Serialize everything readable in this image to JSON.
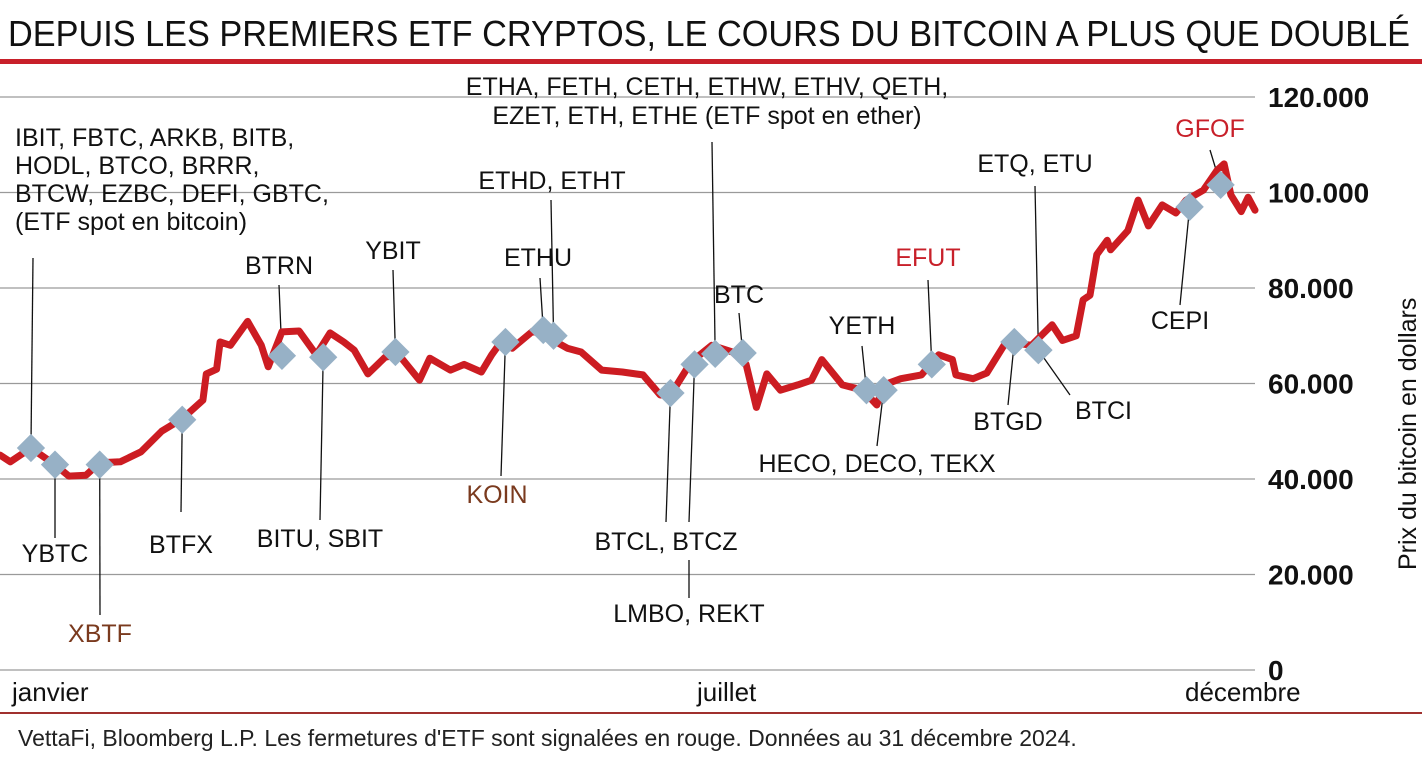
{
  "title": "DEPUIS LES PREMIERS ETF CRYPTOS, LE COURS DU BITCOIN A PLUS QUE DOUBLÉ",
  "footer": "VettaFi, Bloomberg L.P. Les fermetures d'ETF sont signalées en rouge. Données au 31 décembre 2024.",
  "colors": {
    "line": "#cc1c22",
    "marker": "#97b1c6",
    "closure_red": "#c8202a",
    "closure_brown": "#7a3a1e",
    "rule": "#c8202a",
    "grid": "#9a9a9a"
  },
  "chart_data": {
    "type": "line",
    "title": "DEPUIS LES PREMIERS ETF CRYPTOS, LE COURS DU BITCOIN A PLUS QUE DOUBLÉ",
    "ylabel": "Prix du bitcoin en dollars",
    "ylim": [
      0,
      120000
    ],
    "yticks": [
      0,
      20000,
      40000,
      60000,
      80000,
      100000,
      120000
    ],
    "ytick_labels": [
      "0",
      "20.000",
      "40.000",
      "60.000",
      "80.000",
      "100.000",
      "120.000"
    ],
    "xlim": [
      "2024-01-01",
      "2024-12-31"
    ],
    "xtick_labels": [
      "janvier",
      "juillet",
      "décembre"
    ],
    "grid": true,
    "series": [
      {
        "x": [
          "2024-01-01",
          "2024-01-04",
          "2024-01-10",
          "2024-01-17",
          "2024-01-21",
          "2024-01-26",
          "2024-01-30",
          "2024-02-05",
          "2024-02-11",
          "2024-02-17",
          "2024-02-23",
          "2024-02-29",
          "2024-03-01",
          "2024-03-04",
          "2024-03-05",
          "2024-03-08",
          "2024-03-13",
          "2024-03-17",
          "2024-03-19",
          "2024-03-23",
          "2024-03-28",
          "2024-04-02",
          "2024-04-06",
          "2024-04-10",
          "2024-04-13",
          "2024-04-17",
          "2024-04-22",
          "2024-04-26",
          "2024-05-02",
          "2024-05-05",
          "2024-05-11",
          "2024-05-15",
          "2024-05-20",
          "2024-05-23",
          "2024-05-26",
          "2024-05-29",
          "2024-06-04",
          "2024-06-10",
          "2024-06-14",
          "2024-06-18",
          "2024-06-24",
          "2024-06-30",
          "2024-07-06",
          "2024-07-11",
          "2024-07-14",
          "2024-07-20",
          "2024-07-26",
          "2024-08-01",
          "2024-08-05",
          "2024-08-08",
          "2024-08-11",
          "2024-08-15",
          "2024-08-20",
          "2024-08-24",
          "2024-08-27",
          "2024-09-02",
          "2024-09-08",
          "2024-09-12",
          "2024-09-14",
          "2024-09-19",
          "2024-09-25",
          "2024-09-30",
          "2024-10-04",
          "2024-10-05",
          "2024-10-10",
          "2024-10-14",
          "2024-10-19",
          "2024-10-22",
          "2024-10-27",
          "2024-11-02",
          "2024-11-05",
          "2024-11-09",
          "2024-11-11",
          "2024-11-13",
          "2024-11-15",
          "2024-11-18",
          "2024-11-19",
          "2024-11-24",
          "2024-11-27",
          "2024-11-30",
          "2024-12-04",
          "2024-12-08",
          "2024-12-11",
          "2024-12-16",
          "2024-12-20",
          "2024-12-22",
          "2024-12-24",
          "2024-12-27",
          "2024-12-29",
          "2024-12-31"
        ],
        "y": [
          45000,
          43600,
          46500,
          43000,
          40600,
          40800,
          43400,
          43600,
          45700,
          50000,
          52600,
          56500,
          62000,
          63000,
          68700,
          68000,
          73000,
          68000,
          63500,
          70800,
          71000,
          66000,
          70600,
          68700,
          67000,
          62000,
          65500,
          66000,
          60700,
          65300,
          62800,
          64000,
          62400,
          66000,
          69000,
          67400,
          71000,
          69000,
          67400,
          66600,
          62800,
          62400,
          61800,
          57600,
          57600,
          64500,
          68000,
          66600,
          64000,
          55000,
          62000,
          58600,
          59700,
          60700,
          65000,
          59700,
          58600,
          55500,
          59700,
          61000,
          61800,
          66000,
          65000,
          61800,
          61000,
          62200,
          68000,
          68500,
          68000,
          72300,
          69000,
          70000,
          77500,
          78500,
          87000,
          90000,
          88000,
          92000,
          98400,
          93000,
          97400,
          95700,
          98400,
          100500,
          104700,
          106000,
          99500,
          96000,
          99000,
          96300
        ]
      }
    ],
    "annotations": [
      {
        "lines": [
          "IBIT, FBTC, ARKB, BITB,",
          "HODL, BTCO, BRRR,",
          "BTCW, EZBC, DEFI, GBTC,",
          "(ETF spot en bitcoin)"
        ],
        "x": "2024-01-10",
        "y": 46500,
        "closed": false
      },
      {
        "lines": [
          "YBTC"
        ],
        "x": "2024-01-17",
        "y": 43000,
        "closed": false
      },
      {
        "lines": [
          "XBTF"
        ],
        "x": "2024-01-30",
        "y": 43000,
        "closed": true,
        "color": "#7a3a1e"
      },
      {
        "lines": [
          "BTFX"
        ],
        "x": "2024-02-23",
        "y": 52400,
        "closed": false
      },
      {
        "lines": [
          "BTRN"
        ],
        "x": "2024-03-23",
        "y": 65800,
        "closed": false
      },
      {
        "lines": [
          "BITU, SBIT"
        ],
        "x": "2024-04-04",
        "y": 65500,
        "closed": false
      },
      {
        "lines": [
          "YBIT"
        ],
        "x": "2024-04-25",
        "y": 66600,
        "closed": false
      },
      {
        "lines": [
          "KOIN"
        ],
        "x": "2024-05-27",
        "y": 68700,
        "closed": true,
        "color": "#7a3a1e"
      },
      {
        "lines": [
          "ETHU"
        ],
        "x": "2024-06-07",
        "y": 71200,
        "closed": false
      },
      {
        "lines": [
          "ETHD, ETHT"
        ],
        "x": "2024-06-10",
        "y": 70000,
        "closed": false
      },
      {
        "lines": [
          "BTCL, BTCZ"
        ],
        "x": "2024-07-14",
        "y": 58000,
        "closed": false
      },
      {
        "lines": [
          "LMBO, REKT"
        ],
        "x": "2024-07-21",
        "y": 64000,
        "closed": false
      },
      {
        "lines": [
          "ETHA, FETH, CETH, ETHW, ETHV, QETH,",
          "EZET, ETH, ETHE (ETF spot en ether)"
        ],
        "x": "2024-07-27",
        "y": 66200,
        "closed": false
      },
      {
        "lines": [
          "BTC"
        ],
        "x": "2024-08-04",
        "y": 66400,
        "closed": false
      },
      {
        "lines": [
          "YETH"
        ],
        "x": "2024-09-09",
        "y": 58600,
        "closed": false
      },
      {
        "lines": [
          "HECO, DECO, TEKX"
        ],
        "x": "2024-09-14",
        "y": 58600,
        "closed": false
      },
      {
        "lines": [
          "EFUT"
        ],
        "x": "2024-09-28",
        "y": 64000,
        "closed": true,
        "color": "#c8202a"
      },
      {
        "lines": [
          "BTGD"
        ],
        "x": "2024-10-22",
        "y": 68700,
        "closed": false
      },
      {
        "lines": [
          "ETQ, ETU"
        ],
        "x": "2024-10-29",
        "y": 67000,
        "closed": false
      },
      {
        "lines": [
          "BTCI"
        ],
        "x": "2024-10-29",
        "y": 67000,
        "closed": false
      },
      {
        "lines": [
          "CEPI"
        ],
        "x": "2024-12-12",
        "y": 97000,
        "closed": false
      },
      {
        "lines": [
          "GFOF"
        ],
        "x": "2024-12-21",
        "y": 101600,
        "closed": true,
        "color": "#c8202a"
      }
    ]
  }
}
